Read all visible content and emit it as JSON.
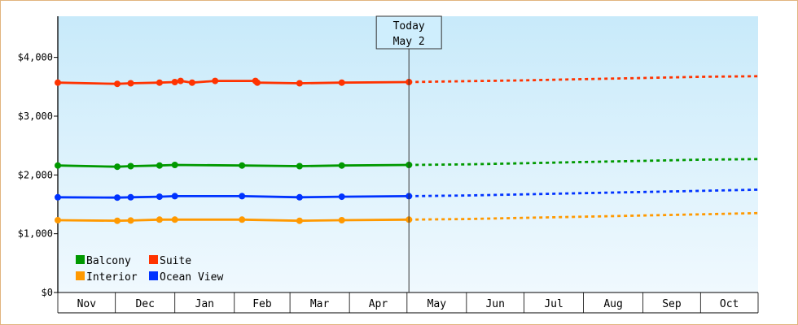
{
  "chart_data": {
    "type": "line",
    "ylim": [
      0,
      4700
    ],
    "y_ticks": [
      {
        "value": 0,
        "label": "$0"
      },
      {
        "value": 1000,
        "label": "$1,000"
      },
      {
        "value": 2000,
        "label": "$2,000"
      },
      {
        "value": 3000,
        "label": "$3,000"
      },
      {
        "value": 4000,
        "label": "$4,000"
      }
    ],
    "x_range": [
      "2023-11-01",
      "2024-10-31"
    ],
    "months": [
      "Nov",
      "Dec",
      "Jan",
      "Feb",
      "Mar",
      "Apr",
      "May",
      "Jun",
      "Jul",
      "Aug",
      "Sep",
      "Oct"
    ],
    "month_starts": [
      "2023-11-01",
      "2023-12-01",
      "2024-01-01",
      "2024-02-01",
      "2024-03-01",
      "2024-04-01",
      "2024-05-01",
      "2024-06-01",
      "2024-07-01",
      "2024-08-01",
      "2024-09-01",
      "2024-10-01",
      "2024-11-01"
    ],
    "today": {
      "line1": "Today",
      "line2": "May 2",
      "date": "2024-05-02"
    },
    "grid": false,
    "legend_position": "bottom-left",
    "series": [
      {
        "name": "Suite",
        "color": "#ff3300",
        "observed": [
          [
            "2023-11-01",
            3570
          ],
          [
            "2023-12-02",
            3550
          ],
          [
            "2023-12-09",
            3560
          ],
          [
            "2023-12-24",
            3570
          ],
          [
            "2024-01-01",
            3580
          ],
          [
            "2024-01-04",
            3600
          ],
          [
            "2024-01-10",
            3570
          ],
          [
            "2024-01-22",
            3600
          ],
          [
            "2024-02-12",
            3600
          ],
          [
            "2024-02-13",
            3570
          ],
          [
            "2024-03-06",
            3560
          ],
          [
            "2024-03-28",
            3570
          ],
          [
            "2024-05-02",
            3580
          ]
        ],
        "forecast": [
          [
            "2024-05-02",
            3580
          ],
          [
            "2024-05-20",
            3590
          ],
          [
            "2024-06-10",
            3600
          ],
          [
            "2024-07-01",
            3610
          ],
          [
            "2024-08-01",
            3630
          ],
          [
            "2024-09-01",
            3650
          ],
          [
            "2024-10-01",
            3670
          ],
          [
            "2024-10-31",
            3680
          ]
        ]
      },
      {
        "name": "Balcony",
        "color": "#009900",
        "observed": [
          [
            "2023-11-01",
            2160
          ],
          [
            "2023-12-02",
            2140
          ],
          [
            "2023-12-09",
            2150
          ],
          [
            "2023-12-24",
            2160
          ],
          [
            "2024-01-01",
            2170
          ],
          [
            "2024-02-05",
            2160
          ],
          [
            "2024-03-06",
            2150
          ],
          [
            "2024-03-28",
            2160
          ],
          [
            "2024-05-02",
            2170
          ]
        ],
        "forecast": [
          [
            "2024-05-02",
            2170
          ],
          [
            "2024-06-01",
            2180
          ],
          [
            "2024-07-01",
            2200
          ],
          [
            "2024-08-01",
            2220
          ],
          [
            "2024-09-01",
            2240
          ],
          [
            "2024-10-01",
            2260
          ],
          [
            "2024-10-31",
            2270
          ]
        ]
      },
      {
        "name": "Ocean View",
        "color": "#0033ff",
        "observed": [
          [
            "2023-11-01",
            1620
          ],
          [
            "2023-12-02",
            1615
          ],
          [
            "2023-12-09",
            1620
          ],
          [
            "2023-12-24",
            1630
          ],
          [
            "2024-01-01",
            1640
          ],
          [
            "2024-02-05",
            1640
          ],
          [
            "2024-03-06",
            1620
          ],
          [
            "2024-03-28",
            1630
          ],
          [
            "2024-05-02",
            1640
          ]
        ],
        "forecast": [
          [
            "2024-05-02",
            1640
          ],
          [
            "2024-06-01",
            1650
          ],
          [
            "2024-07-01",
            1670
          ],
          [
            "2024-08-01",
            1690
          ],
          [
            "2024-09-01",
            1710
          ],
          [
            "2024-10-01",
            1730
          ],
          [
            "2024-10-31",
            1750
          ]
        ]
      },
      {
        "name": "Interior",
        "color": "#ff9900",
        "observed": [
          [
            "2023-11-01",
            1230
          ],
          [
            "2023-12-02",
            1220
          ],
          [
            "2023-12-09",
            1225
          ],
          [
            "2023-12-24",
            1240
          ],
          [
            "2024-01-01",
            1240
          ],
          [
            "2024-02-05",
            1240
          ],
          [
            "2024-03-06",
            1220
          ],
          [
            "2024-03-28",
            1230
          ],
          [
            "2024-05-02",
            1240
          ]
        ],
        "forecast": [
          [
            "2024-05-02",
            1240
          ],
          [
            "2024-06-01",
            1250
          ],
          [
            "2024-07-01",
            1270
          ],
          [
            "2024-08-01",
            1290
          ],
          [
            "2024-09-01",
            1310
          ],
          [
            "2024-10-01",
            1330
          ],
          [
            "2024-10-31",
            1350
          ]
        ]
      }
    ],
    "legend": [
      {
        "name": "Balcony",
        "color": "#009900"
      },
      {
        "name": "Suite",
        "color": "#ff3300"
      },
      {
        "name": "Interior",
        "color": "#ff9900"
      },
      {
        "name": "Ocean View",
        "color": "#0033ff"
      }
    ]
  }
}
